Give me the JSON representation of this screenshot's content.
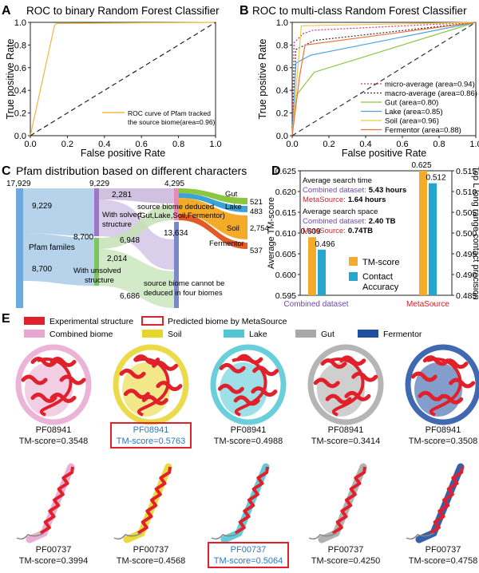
{
  "colors": {
    "soil": "#e8d52a",
    "lake": "#4fc7d4",
    "gut": "#a8a8a8",
    "fermentor": "#1f4fa3",
    "experimental": "#e0202a",
    "combined": "#e7a6cf",
    "orange": "#f5ab2a",
    "cyan": "#24a6cf",
    "predicted_text": "#2a77c4",
    "purple_text": "#6a4aa8",
    "red_text": "#d21f26"
  },
  "panels": {
    "a": {
      "letter": "A",
      "title": "ROC to binary Random Forest Classifier"
    },
    "b": {
      "letter": "B",
      "title": "ROC to multi-class Random Forest Classifier"
    },
    "c": {
      "letter": "C",
      "title": "Pfam distribution based on different characters"
    },
    "d": {
      "letter": "D"
    },
    "e": {
      "letter": "E"
    }
  },
  "chart_data": [
    {
      "type": "line",
      "id": "A",
      "title": "ROC to binary Random Forest Classifier",
      "xlabel": "False positive Rate",
      "ylabel": "True positive Rate",
      "xlim": [
        0,
        1
      ],
      "ylim": [
        0,
        1
      ],
      "xticks": [
        "0.0",
        "0.2",
        "0.4",
        "0.6",
        "0.8",
        "1.0"
      ],
      "yticks": [
        "0.0",
        "0.2",
        "0.4",
        "0.6",
        "0.8",
        "1.0"
      ],
      "series": [
        {
          "name": "ROC curve of Pfam tracked the source biome(area=0.96)",
          "legend_line1": "ROC curve of Pfam tracked",
          "legend_line2": "the source biome(area=0.96)",
          "color": "#f5b53a",
          "dash": "",
          "points": [
            [
              0,
              0
            ],
            [
              0.13,
              0.97
            ],
            [
              0.14,
              0.99
            ],
            [
              1,
              1
            ]
          ]
        },
        {
          "name": "chance",
          "color": "#222",
          "dash": "6,4",
          "points": [
            [
              0,
              0
            ],
            [
              1,
              1
            ]
          ]
        }
      ]
    },
    {
      "type": "line",
      "id": "B",
      "title": "ROC to multi-class Random Forest Classifier",
      "xlabel": "False positive Rate",
      "ylabel": "True positive Rate",
      "xlim": [
        0,
        1
      ],
      "ylim": [
        0,
        1
      ],
      "xticks": [
        "0.0",
        "0.2",
        "0.4",
        "0.6",
        "0.8",
        "1.0"
      ],
      "yticks": [
        "0.0",
        "0.2",
        "0.4",
        "0.6",
        "0.8",
        "1.0"
      ],
      "legend": "lower-right",
      "series": [
        {
          "name": "micro-average (area=0.94)",
          "color": "#d6336c",
          "dash": "2,2",
          "points": [
            [
              0,
              0
            ],
            [
              0.01,
              0.82
            ],
            [
              0.06,
              0.9
            ],
            [
              0.11,
              0.93
            ],
            [
              1,
              1
            ]
          ]
        },
        {
          "name": "macro-average (area=0.86)",
          "color": "#333",
          "dash": "2,2",
          "points": [
            [
              0,
              0
            ],
            [
              0.02,
              0.76
            ],
            [
              0.12,
              0.84
            ],
            [
              1,
              1
            ]
          ]
        },
        {
          "name": "Gut (area=0.80)",
          "color": "#8cc63f",
          "dash": "",
          "points": [
            [
              0,
              0
            ],
            [
              0.02,
              0.35
            ],
            [
              0.12,
              0.56
            ],
            [
              1,
              1
            ]
          ]
        },
        {
          "name": "Lake (area=0.85)",
          "color": "#4aa3df",
          "dash": "",
          "points": [
            [
              0,
              0
            ],
            [
              0.02,
              0.64
            ],
            [
              0.1,
              0.71
            ],
            [
              1,
              1
            ]
          ]
        },
        {
          "name": "Soil (area=0.96)",
          "color": "#f2c744",
          "dash": "",
          "points": [
            [
              0,
              0
            ],
            [
              0.05,
              0.97
            ],
            [
              1,
              1
            ]
          ]
        },
        {
          "name": "Fermentor (area=0.88)",
          "color": "#e8743b",
          "dash": "",
          "points": [
            [
              0,
              0
            ],
            [
              0.04,
              0.52
            ],
            [
              0.07,
              0.8
            ],
            [
              1,
              1
            ]
          ]
        },
        {
          "name": "chance",
          "color": "#333",
          "dash": "6,4",
          "points": [
            [
              0,
              0
            ],
            [
              1,
              1
            ]
          ]
        }
      ]
    },
    {
      "type": "sankey",
      "id": "C",
      "title": "Pfam distribution based on different characters",
      "nodes": {
        "pfam": {
          "label": "Pfam familes",
          "value": "17,929"
        },
        "solved": {
          "label_line1": "With solved",
          "label_line2": "structure",
          "value": "9,229"
        },
        "unsolved": {
          "label_line1": "With unsolved",
          "label_line2": "structure",
          "value": "8,700"
        },
        "deduced": {
          "label_line1": "source biome deduced",
          "label_line2": "(Gut,Lake,Soil,Fermentor)",
          "value": "4,295"
        },
        "not_deduced": {
          "label_line1": "source biome cannot be",
          "label_line2": "deduced in four biomes",
          "value": "13,634"
        },
        "gut": {
          "label": "Gut",
          "value": "521"
        },
        "lake": {
          "label": "Lake",
          "value": "483"
        },
        "soil": {
          "label": "Soil",
          "value": "2,754"
        },
        "fermentor": {
          "label": "Fermentor",
          "value": "537"
        }
      },
      "flows": [
        {
          "from": "pfam",
          "to": "solved",
          "value": "9,229"
        },
        {
          "from": "pfam",
          "to": "unsolved",
          "value": "8,700"
        },
        {
          "from": "solved",
          "to": "deduced",
          "value": "2,281"
        },
        {
          "from": "solved",
          "to": "not_deduced",
          "value": "6,948"
        },
        {
          "from": "unsolved",
          "to": "deduced",
          "value": "2,014"
        },
        {
          "from": "unsolved",
          "to": "not_deduced",
          "value": "6,686"
        }
      ]
    },
    {
      "type": "bar",
      "id": "D",
      "categories": [
        "Combined dataset",
        "MetaSource"
      ],
      "series": [
        {
          "name": "TM-score",
          "axis": "left",
          "values": [
            0.609,
            0.625
          ],
          "labels": [
            "0.609",
            "0.625"
          ],
          "color": "#f5ab2a"
        },
        {
          "name": "Contact Accuracy",
          "legend_line1": "Contact",
          "legend_line2": "Accuracy",
          "axis": "right",
          "values": [
            0.496,
            0.512
          ],
          "labels": [
            "0.496",
            "0.512"
          ],
          "color": "#24a6cf"
        }
      ],
      "ylabel_left": "Average TM-score",
      "ylim_left": [
        0.595,
        0.625
      ],
      "yticks_left": [
        "0.595",
        "0.600",
        "0.605",
        "0.610",
        "0.615",
        "0.620",
        "0.625"
      ],
      "ylabel_right": "Top L long range contact precision",
      "ylim_right": [
        0.485,
        0.515
      ],
      "yticks_right": [
        "0.485",
        "0.490",
        "0.495",
        "0.500",
        "0.505",
        "0.510",
        "0.515"
      ],
      "annotations": {
        "time_title": "Average search time",
        "time_combined_label": "Combined dataset:",
        "time_combined_value": "5.43 hours",
        "time_meta_label": "MetaSource:",
        "time_meta_value": "1.64 hours",
        "space_title": "Average search space",
        "space_combined_label": "Combined dataset:",
        "space_combined_value": "2.40 TB",
        "space_meta_label": "MetaSource:",
        "space_meta_value": "0.74TB"
      }
    }
  ],
  "legend_e": {
    "experimental": "Experimental structure",
    "predicted": "Predicted biome by MetaSource",
    "combined": "Combined biome",
    "soil": "Soil",
    "lake": "Lake",
    "gut": "Gut",
    "fermentor": "Fermentor"
  },
  "structures_row1": [
    {
      "pfam": "PF08941",
      "score": "TM-score=0.3548",
      "overlay": "combined",
      "highlight": false
    },
    {
      "pfam": "PF08941",
      "score": "TM-score=0.5763",
      "overlay": "soil",
      "highlight": true
    },
    {
      "pfam": "PF08941",
      "score": "TM-score=0.4988",
      "overlay": "lake",
      "highlight": false
    },
    {
      "pfam": "PF08941",
      "score": "TM-score=0.3414",
      "overlay": "gut",
      "highlight": false
    },
    {
      "pfam": "PF08941",
      "score": "TM-score=0.3508",
      "overlay": "fermentor",
      "highlight": false
    }
  ],
  "structures_row2": [
    {
      "pfam": "PF00737",
      "score": "TM-score=0.3994",
      "overlay": "combined",
      "highlight": false
    },
    {
      "pfam": "PF00737",
      "score": "TM-score=0.4568",
      "overlay": "soil",
      "highlight": false
    },
    {
      "pfam": "PF00737",
      "score": "TM-score=0.5064",
      "overlay": "lake",
      "highlight": true
    },
    {
      "pfam": "PF00737",
      "score": "TM-score=0.4250",
      "overlay": "gut",
      "highlight": false
    },
    {
      "pfam": "PF00737",
      "score": "TM-score=0.4758",
      "overlay": "fermentor",
      "highlight": false
    }
  ]
}
